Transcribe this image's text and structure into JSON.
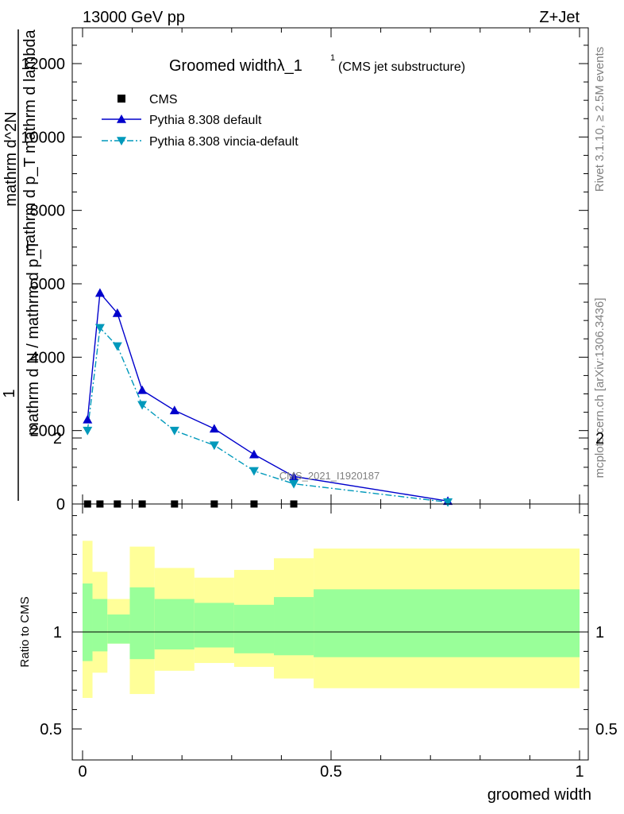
{
  "header": {
    "left": "13000 GeV pp",
    "right": "Z+Jet"
  },
  "side_text": {
    "rivet": "Rivet 3.1.10, ≥ 2.5M events",
    "mcplots": "mcplots.cern.ch [arXiv:1306.3436]"
  },
  "watermark": "CMS_2021_I1920187",
  "chart_data": [
    {
      "type": "line",
      "title": "Groomed widthλ_1",
      "title_sup": "1",
      "subtitle": "(CMS jet substructure)",
      "ylabel_parts": [
        "1",
        "mathrm d N / mathrm d p_T",
        "mathrm d^2N",
        "mathrm d p_T mathrm d lambda"
      ],
      "xlim": [
        0,
        1
      ],
      "ylim": [
        0,
        13000
      ],
      "yticks": [
        0,
        2000,
        4000,
        6000,
        8000,
        10000,
        12000
      ],
      "ytick_labels": [
        "0",
        "2000",
        "4000",
        "6000",
        "8000",
        "10000",
        "12000"
      ],
      "legend_position": "top-left",
      "series": [
        {
          "name": "CMS",
          "color": "#000000",
          "marker": "square",
          "x": [
            0.01,
            0.035,
            0.07,
            0.12,
            0.185,
            0.265,
            0.345,
            0.425
          ],
          "y": [
            0,
            0,
            0,
            0,
            0,
            0,
            0,
            0
          ]
        },
        {
          "name": "Pythia 8.308 default",
          "color": "#0000cc",
          "marker": "triangle-up",
          "line": "solid",
          "x": [
            0.01,
            0.035,
            0.07,
            0.12,
            0.185,
            0.265,
            0.345,
            0.425,
            0.735
          ],
          "y": [
            2300,
            5750,
            5200,
            3100,
            2550,
            2050,
            1350,
            750,
            80
          ]
        },
        {
          "name": "Pythia 8.308 vincia-default",
          "color": "#0099bb",
          "marker": "triangle-down",
          "line": "dashdot",
          "x": [
            0.01,
            0.035,
            0.07,
            0.12,
            0.185,
            0.265,
            0.345,
            0.425,
            0.735
          ],
          "y": [
            2000,
            4800,
            4300,
            2700,
            2000,
            1600,
            900,
            550,
            50
          ]
        }
      ]
    },
    {
      "type": "area",
      "ylabel": "Ratio to CMS",
      "xlabel": "groomed width",
      "xlim": [
        0,
        1
      ],
      "ylim": [
        0.4,
        2.3
      ],
      "yticks": [
        0.5,
        1,
        2
      ],
      "ytick_labels": [
        "0.5",
        "1",
        "2"
      ],
      "xticks": [
        0,
        0.5,
        1
      ],
      "xtick_labels": [
        "0",
        "0.5",
        "1"
      ],
      "bin_edges": [
        0,
        0.02,
        0.05,
        0.095,
        0.145,
        0.225,
        0.305,
        0.385,
        0.465,
        1.0
      ],
      "band_inner_lo": [
        0.85,
        0.9,
        0.94,
        0.86,
        0.91,
        0.92,
        0.89,
        0.88,
        0.87
      ],
      "band_inner_hi": [
        1.25,
        1.17,
        1.09,
        1.23,
        1.17,
        1.15,
        1.14,
        1.18,
        1.22
      ],
      "band_outer_lo": [
        0.66,
        0.79,
        0.94,
        0.68,
        0.8,
        0.84,
        0.82,
        0.76,
        0.71
      ],
      "band_outer_hi": [
        1.47,
        1.31,
        1.17,
        1.44,
        1.33,
        1.28,
        1.32,
        1.38,
        1.43
      ],
      "band_colors": {
        "inner": "#99ff99",
        "outer": "#ffff99"
      },
      "reference_line": 1
    }
  ]
}
